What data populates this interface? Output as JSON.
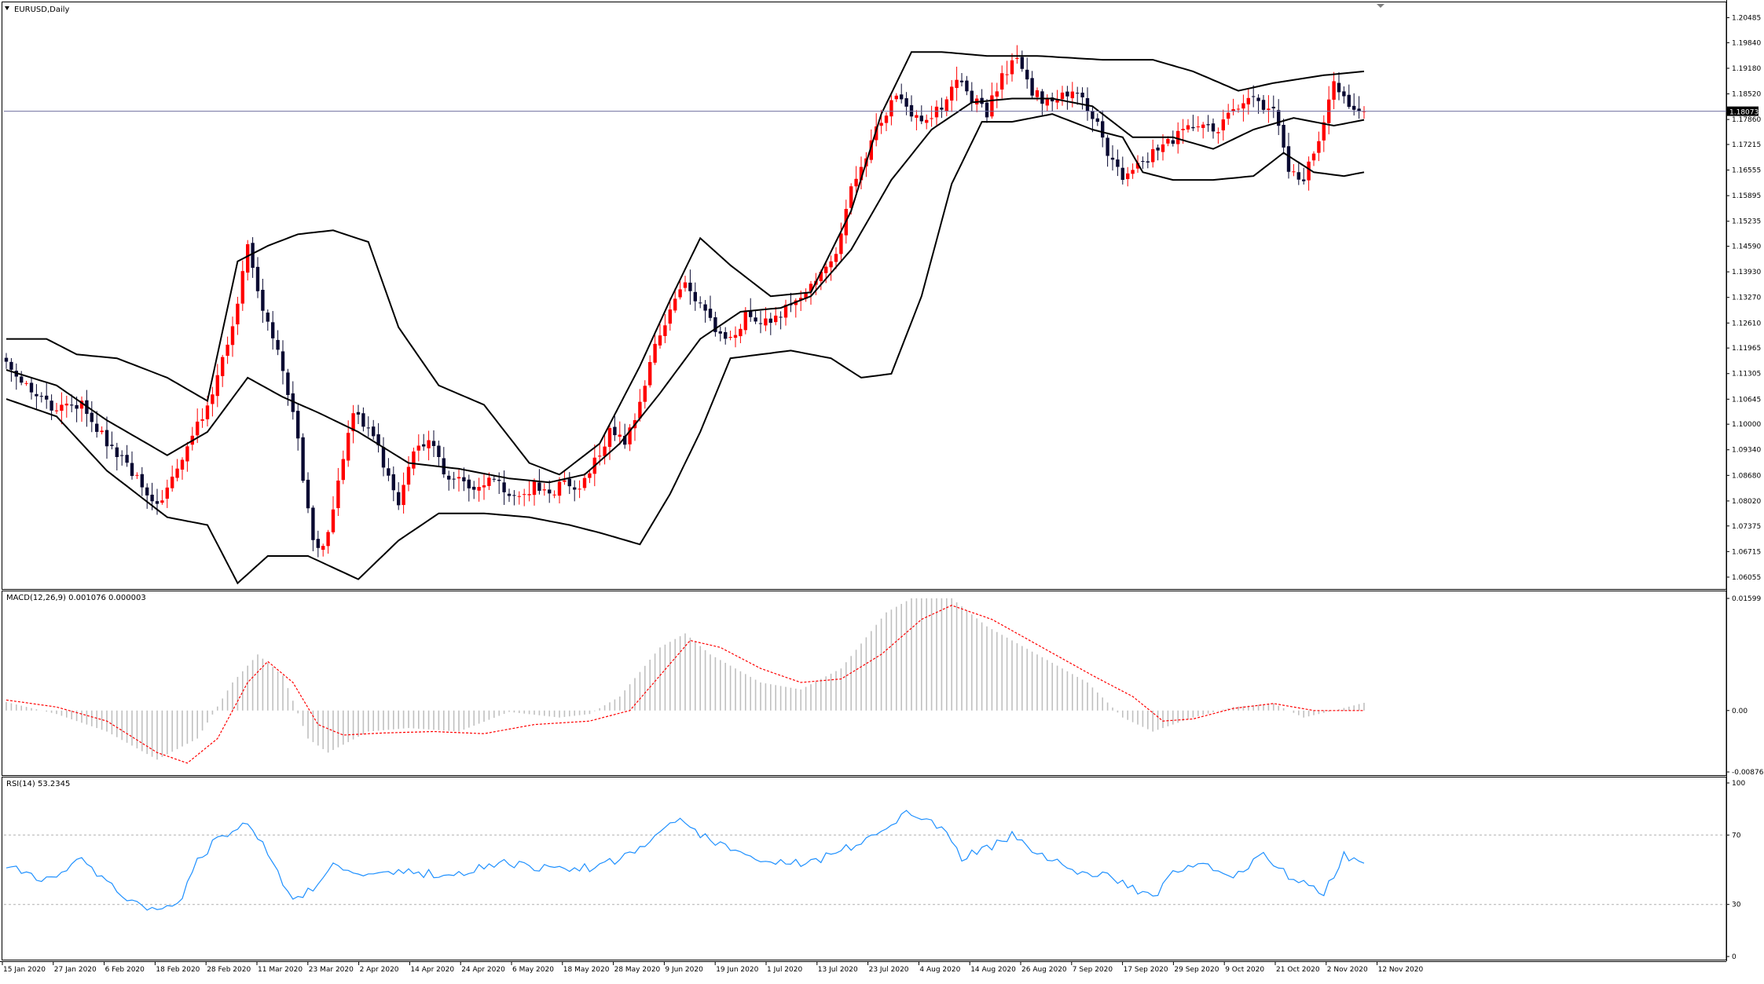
{
  "chart_data": [
    {
      "panel": "price",
      "type": "candlestick",
      "title": "EURUSD,Daily",
      "current_price_label": "1.18073",
      "current_price": 1.18073,
      "ylim": [
        1.0579,
        1.2082
      ],
      "y_ticks": [
        "1.20485",
        "1.19840",
        "1.19180",
        "1.18520",
        "1.17860",
        "1.17215",
        "1.16555",
        "1.15895",
        "1.15235",
        "1.14590",
        "1.13930",
        "1.13270",
        "1.12610",
        "1.11965",
        "1.11305",
        "1.10645",
        "1.10000",
        "1.09340",
        "1.08680",
        "1.08020",
        "1.07375",
        "1.06715",
        "1.06055"
      ],
      "x_tick_labels": [
        "15 Jan 2020",
        "27 Jan 2020",
        "6 Feb 2020",
        "18 Feb 2020",
        "28 Feb 2020",
        "11 Mar 2020",
        "23 Mar 2020",
        "2 Apr 2020",
        "14 Apr 2020",
        "24 Apr 2020",
        "6 May 2020",
        "18 May 2020",
        "28 May 2020",
        "9 Jun 2020",
        "19 Jun 2020",
        "1 Jul 2020",
        "13 Jul 2020",
        "23 Jul 2020",
        "4 Aug 2020",
        "14 Aug 2020",
        "26 Aug 2020",
        "7 Sep 2020",
        "17 Sep 2020",
        "29 Sep 2020",
        "9 Oct 2020",
        "21 Oct 2020",
        "2 Nov 2020",
        "12 Nov 2020"
      ],
      "close_anchors": [
        [
          0,
          1.115
        ],
        [
          5,
          1.109
        ],
        [
          10,
          1.1035
        ],
        [
          15,
          1.105
        ],
        [
          20,
          1.095
        ],
        [
          25,
          1.088
        ],
        [
          30,
          1.079
        ],
        [
          35,
          1.091
        ],
        [
          40,
          1.105
        ],
        [
          45,
          1.125
        ],
        [
          48,
          1.145
        ],
        [
          52,
          1.125
        ],
        [
          55,
          1.115
        ],
        [
          58,
          1.095
        ],
        [
          61,
          1.07
        ],
        [
          63,
          1.068
        ],
        [
          66,
          1.085
        ],
        [
          69,
          1.102
        ],
        [
          72,
          1.1
        ],
        [
          75,
          1.09
        ],
        [
          78,
          1.08
        ],
        [
          81,
          1.092
        ],
        [
          84,
          1.096
        ],
        [
          87,
          1.088
        ],
        [
          90,
          1.085
        ],
        [
          93,
          1.082
        ],
        [
          96,
          1.086
        ],
        [
          99,
          1.083
        ],
        [
          102,
          1.08
        ],
        [
          105,
          1.085
        ],
        [
          108,
          1.082
        ],
        [
          111,
          1.086
        ],
        [
          114,
          1.082
        ],
        [
          117,
          1.09
        ],
        [
          120,
          1.098
        ],
        [
          123,
          1.095
        ],
        [
          126,
          1.105
        ],
        [
          129,
          1.12
        ],
        [
          132,
          1.13
        ],
        [
          135,
          1.138
        ],
        [
          138,
          1.13
        ],
        [
          141,
          1.125
        ],
        [
          144,
          1.122
        ],
        [
          147,
          1.128
        ],
        [
          150,
          1.125
        ],
        [
          153,
          1.128
        ],
        [
          156,
          1.13
        ],
        [
          159,
          1.135
        ],
        [
          162,
          1.139
        ],
        [
          165,
          1.145
        ],
        [
          168,
          1.16
        ],
        [
          171,
          1.17
        ],
        [
          174,
          1.178
        ],
        [
          177,
          1.185
        ],
        [
          180,
          1.18
        ],
        [
          183,
          1.178
        ],
        [
          186,
          1.182
        ],
        [
          189,
          1.19
        ],
        [
          192,
          1.184
        ],
        [
          195,
          1.18
        ],
        [
          198,
          1.19
        ],
        [
          201,
          1.195
        ],
        [
          204,
          1.186
        ],
        [
          207,
          1.183
        ],
        [
          210,
          1.185
        ],
        [
          213,
          1.186
        ],
        [
          216,
          1.18
        ],
        [
          219,
          1.17
        ],
        [
          222,
          1.164
        ],
        [
          225,
          1.166
        ],
        [
          228,
          1.17
        ],
        [
          231,
          1.173
        ],
        [
          234,
          1.175
        ],
        [
          237,
          1.178
        ],
        [
          240,
          1.175
        ],
        [
          243,
          1.18
        ],
        [
          246,
          1.184
        ],
        [
          249,
          1.183
        ],
        [
          252,
          1.181
        ],
        [
          255,
          1.165
        ],
        [
          258,
          1.164
        ],
        [
          261,
          1.172
        ],
        [
          264,
          1.188
        ],
        [
          267,
          1.181
        ],
        [
          270,
          1.1807
        ]
      ],
      "bollinger": {
        "middle": [
          [
            0,
            1.114
          ],
          [
            10,
            1.11
          ],
          [
            20,
            1.101
          ],
          [
            32,
            1.092
          ],
          [
            40,
            1.098
          ],
          [
            48,
            1.112
          ],
          [
            55,
            1.107
          ],
          [
            62,
            1.103
          ],
          [
            70,
            1.098
          ],
          [
            80,
            1.09
          ],
          [
            90,
            1.0885
          ],
          [
            100,
            1.086
          ],
          [
            108,
            1.085
          ],
          [
            115,
            1.087
          ],
          [
            122,
            1.095
          ],
          [
            130,
            1.108
          ],
          [
            138,
            1.122
          ],
          [
            146,
            1.129
          ],
          [
            154,
            1.13
          ],
          [
            160,
            1.133
          ],
          [
            168,
            1.145
          ],
          [
            176,
            1.163
          ],
          [
            184,
            1.176
          ],
          [
            192,
            1.183
          ],
          [
            200,
            1.184
          ],
          [
            208,
            1.184
          ],
          [
            216,
            1.182
          ],
          [
            224,
            1.174
          ],
          [
            232,
            1.174
          ],
          [
            240,
            1.171
          ],
          [
            248,
            1.176
          ],
          [
            256,
            1.179
          ],
          [
            264,
            1.177
          ],
          [
            270,
            1.1785
          ]
        ],
        "upper": [
          [
            0,
            1.122
          ],
          [
            8,
            1.122
          ],
          [
            14,
            1.118
          ],
          [
            22,
            1.117
          ],
          [
            32,
            1.112
          ],
          [
            40,
            1.106
          ],
          [
            46,
            1.142
          ],
          [
            52,
            1.146
          ],
          [
            58,
            1.149
          ],
          [
            65,
            1.15
          ],
          [
            72,
            1.147
          ],
          [
            78,
            1.125
          ],
          [
            86,
            1.11
          ],
          [
            95,
            1.105
          ],
          [
            104,
            1.09
          ],
          [
            110,
            1.087
          ],
          [
            118,
            1.095
          ],
          [
            126,
            1.115
          ],
          [
            132,
            1.132
          ],
          [
            138,
            1.148
          ],
          [
            144,
            1.141
          ],
          [
            152,
            1.133
          ],
          [
            160,
            1.134
          ],
          [
            168,
            1.155
          ],
          [
            174,
            1.18
          ],
          [
            180,
            1.196
          ],
          [
            186,
            1.196
          ],
          [
            195,
            1.195
          ],
          [
            205,
            1.195
          ],
          [
            218,
            1.194
          ],
          [
            228,
            1.194
          ],
          [
            236,
            1.191
          ],
          [
            245,
            1.186
          ],
          [
            252,
            1.188
          ],
          [
            262,
            1.19
          ],
          [
            270,
            1.191
          ]
        ],
        "lower": [
          [
            0,
            1.1065
          ],
          [
            10,
            1.102
          ],
          [
            20,
            1.088
          ],
          [
            32,
            1.076
          ],
          [
            40,
            1.074
          ],
          [
            46,
            1.059
          ],
          [
            52,
            1.066
          ],
          [
            60,
            1.066
          ],
          [
            70,
            1.06
          ],
          [
            78,
            1.07
          ],
          [
            86,
            1.077
          ],
          [
            95,
            1.077
          ],
          [
            104,
            1.076
          ],
          [
            112,
            1.074
          ],
          [
            118,
            1.072
          ],
          [
            126,
            1.069
          ],
          [
            132,
            1.082
          ],
          [
            138,
            1.098
          ],
          [
            144,
            1.117
          ],
          [
            150,
            1.118
          ],
          [
            156,
            1.119
          ],
          [
            164,
            1.117
          ],
          [
            170,
            1.112
          ],
          [
            176,
            1.113
          ],
          [
            182,
            1.133
          ],
          [
            188,
            1.162
          ],
          [
            194,
            1.178
          ],
          [
            200,
            1.178
          ],
          [
            208,
            1.18
          ],
          [
            216,
            1.176
          ],
          [
            222,
            1.174
          ],
          [
            226,
            1.165
          ],
          [
            232,
            1.163
          ],
          [
            240,
            1.163
          ],
          [
            248,
            1.164
          ],
          [
            254,
            1.17
          ],
          [
            260,
            1.165
          ],
          [
            266,
            1.164
          ],
          [
            270,
            1.165
          ]
        ]
      }
    },
    {
      "panel": "macd",
      "type": "bar+line",
      "title": "MACD(12,26,9) 0.001076 0.000003",
      "ylim": [
        -0.008763,
        0.01599
      ],
      "y_ticks": [
        "0.01599",
        "0.00",
        "-0.008763"
      ],
      "histogram_color": "#c0c0c0",
      "signal_color": "#ff0000",
      "histogram_anchors": [
        [
          0,
          0.0012
        ],
        [
          10,
          -0.0005
        ],
        [
          20,
          -0.003
        ],
        [
          30,
          -0.007
        ],
        [
          38,
          -0.004
        ],
        [
          45,
          0.004
        ],
        [
          50,
          0.008
        ],
        [
          55,
          0.005
        ],
        [
          60,
          -0.004
        ],
        [
          64,
          -0.006
        ],
        [
          72,
          -0.003
        ],
        [
          80,
          -0.0025
        ],
        [
          90,
          -0.003
        ],
        [
          100,
          -0.0002
        ],
        [
          110,
          -0.001
        ],
        [
          116,
          -0.0005
        ],
        [
          122,
          0.002
        ],
        [
          130,
          0.009
        ],
        [
          135,
          0.011
        ],
        [
          140,
          0.008
        ],
        [
          150,
          0.004
        ],
        [
          158,
          0.003
        ],
        [
          166,
          0.006
        ],
        [
          175,
          0.014
        ],
        [
          180,
          0.016
        ],
        [
          188,
          0.016
        ],
        [
          195,
          0.012
        ],
        [
          205,
          0.008
        ],
        [
          215,
          0.004
        ],
        [
          222,
          -0.001
        ],
        [
          228,
          -0.003
        ],
        [
          236,
          -0.001
        ],
        [
          244,
          0.0005
        ],
        [
          252,
          0.001
        ],
        [
          258,
          -0.001
        ],
        [
          264,
          0.0
        ],
        [
          270,
          0.0011
        ]
      ],
      "signal_anchors": [
        [
          0,
          0.0015
        ],
        [
          10,
          0.0005
        ],
        [
          20,
          -0.0015
        ],
        [
          30,
          -0.006
        ],
        [
          36,
          -0.0075
        ],
        [
          42,
          -0.004
        ],
        [
          48,
          0.004
        ],
        [
          52,
          0.007
        ],
        [
          57,
          0.004
        ],
        [
          62,
          -0.002
        ],
        [
          67,
          -0.0035
        ],
        [
          75,
          -0.0032
        ],
        [
          85,
          -0.003
        ],
        [
          95,
          -0.0033
        ],
        [
          105,
          -0.002
        ],
        [
          116,
          -0.0015
        ],
        [
          124,
          0.0
        ],
        [
          130,
          0.005
        ],
        [
          136,
          0.01
        ],
        [
          142,
          0.009
        ],
        [
          150,
          0.006
        ],
        [
          158,
          0.004
        ],
        [
          166,
          0.0045
        ],
        [
          174,
          0.008
        ],
        [
          182,
          0.013
        ],
        [
          188,
          0.015
        ],
        [
          196,
          0.013
        ],
        [
          206,
          0.009
        ],
        [
          216,
          0.005
        ],
        [
          224,
          0.002
        ],
        [
          230,
          -0.0015
        ],
        [
          236,
          -0.0012
        ],
        [
          244,
          0.0003
        ],
        [
          252,
          0.001
        ],
        [
          260,
          0.0
        ],
        [
          266,
          0.0
        ],
        [
          270,
          0.0
        ]
      ]
    },
    {
      "panel": "rsi",
      "type": "line",
      "title": "RSI(14) 53.2345",
      "ylim": [
        0,
        100
      ],
      "y_ticks": [
        "100",
        "70",
        "30",
        "0"
      ],
      "levels": [
        70,
        30
      ],
      "line_color": "#1e90ff",
      "rsi_anchors": [
        [
          0,
          52
        ],
        [
          5,
          46
        ],
        [
          10,
          45
        ],
        [
          15,
          56
        ],
        [
          20,
          42
        ],
        [
          25,
          31
        ],
        [
          30,
          25
        ],
        [
          35,
          34
        ],
        [
          38,
          55
        ],
        [
          42,
          68
        ],
        [
          46,
          75
        ],
        [
          48,
          78
        ],
        [
          52,
          60
        ],
        [
          57,
          32
        ],
        [
          61,
          40
        ],
        [
          65,
          53
        ],
        [
          70,
          45
        ],
        [
          76,
          50
        ],
        [
          82,
          48
        ],
        [
          88,
          47
        ],
        [
          94,
          51
        ],
        [
          100,
          54
        ],
        [
          106,
          51
        ],
        [
          112,
          50
        ],
        [
          118,
          52
        ],
        [
          124,
          58
        ],
        [
          130,
          72
        ],
        [
          134,
          78
        ],
        [
          138,
          70
        ],
        [
          142,
          65
        ],
        [
          150,
          57
        ],
        [
          156,
          53
        ],
        [
          162,
          56
        ],
        [
          170,
          66
        ],
        [
          176,
          78
        ],
        [
          180,
          83
        ],
        [
          186,
          75
        ],
        [
          190,
          57
        ],
        [
          196,
          63
        ],
        [
          200,
          70
        ],
        [
          206,
          58
        ],
        [
          212,
          50
        ],
        [
          220,
          45
        ],
        [
          228,
          34
        ],
        [
          232,
          48
        ],
        [
          238,
          54
        ],
        [
          244,
          47
        ],
        [
          250,
          58
        ],
        [
          256,
          44
        ],
        [
          262,
          37
        ],
        [
          266,
          58
        ],
        [
          270,
          53
        ]
      ]
    }
  ]
}
